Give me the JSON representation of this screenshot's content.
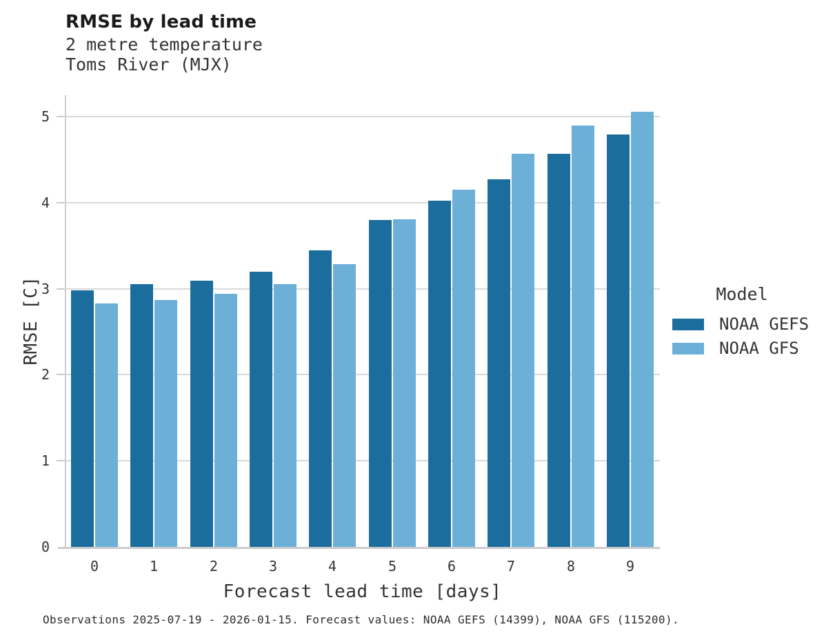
{
  "header": {
    "title": "RMSE by lead time",
    "subtitle_line1": "2 metre temperature",
    "subtitle_line2": "Toms River (MJX)"
  },
  "chart_data": {
    "type": "bar",
    "title": "RMSE by lead time",
    "subtitle": [
      "2 metre temperature",
      "Toms River (MJX)"
    ],
    "categories": [
      "0",
      "1",
      "2",
      "3",
      "4",
      "5",
      "6",
      "7",
      "8",
      "9"
    ],
    "series": [
      {
        "name": "NOAA GEFS",
        "color": "#1b6d9e",
        "values": [
          2.98,
          3.05,
          3.09,
          3.2,
          3.45,
          3.8,
          4.02,
          4.27,
          4.57,
          4.79
        ]
      },
      {
        "name": "NOAA GFS",
        "color": "#6cb0d8",
        "values": [
          2.83,
          2.87,
          2.94,
          3.05,
          3.29,
          3.81,
          4.15,
          4.57,
          4.9,
          5.06
        ]
      }
    ],
    "xlabel": "Forecast lead time [days]",
    "ylabel": "RMSE [C]",
    "ylim": [
      0,
      5.25
    ],
    "yticks": [
      0,
      1,
      2,
      3,
      4,
      5
    ],
    "grid": "horizontal",
    "legend_position": "right"
  },
  "legend": {
    "title": "Model",
    "entries": [
      {
        "label": "NOAA GEFS",
        "color": "#1b6d9e"
      },
      {
        "label": "NOAA GFS",
        "color": "#6cb0d8"
      }
    ]
  },
  "caption": "Observations 2025-07-19 - 2026-01-15. Forecast values: NOAA GEFS (14399), NOAA GFS (115200).",
  "colors": {
    "bar_dark": "#1b6d9e",
    "bar_light": "#6cb0d8",
    "grid": "#d9d9d9",
    "axis": "#cccccc",
    "text": "#333333",
    "title": "#1a1a1a",
    "background": "#ffffff"
  }
}
